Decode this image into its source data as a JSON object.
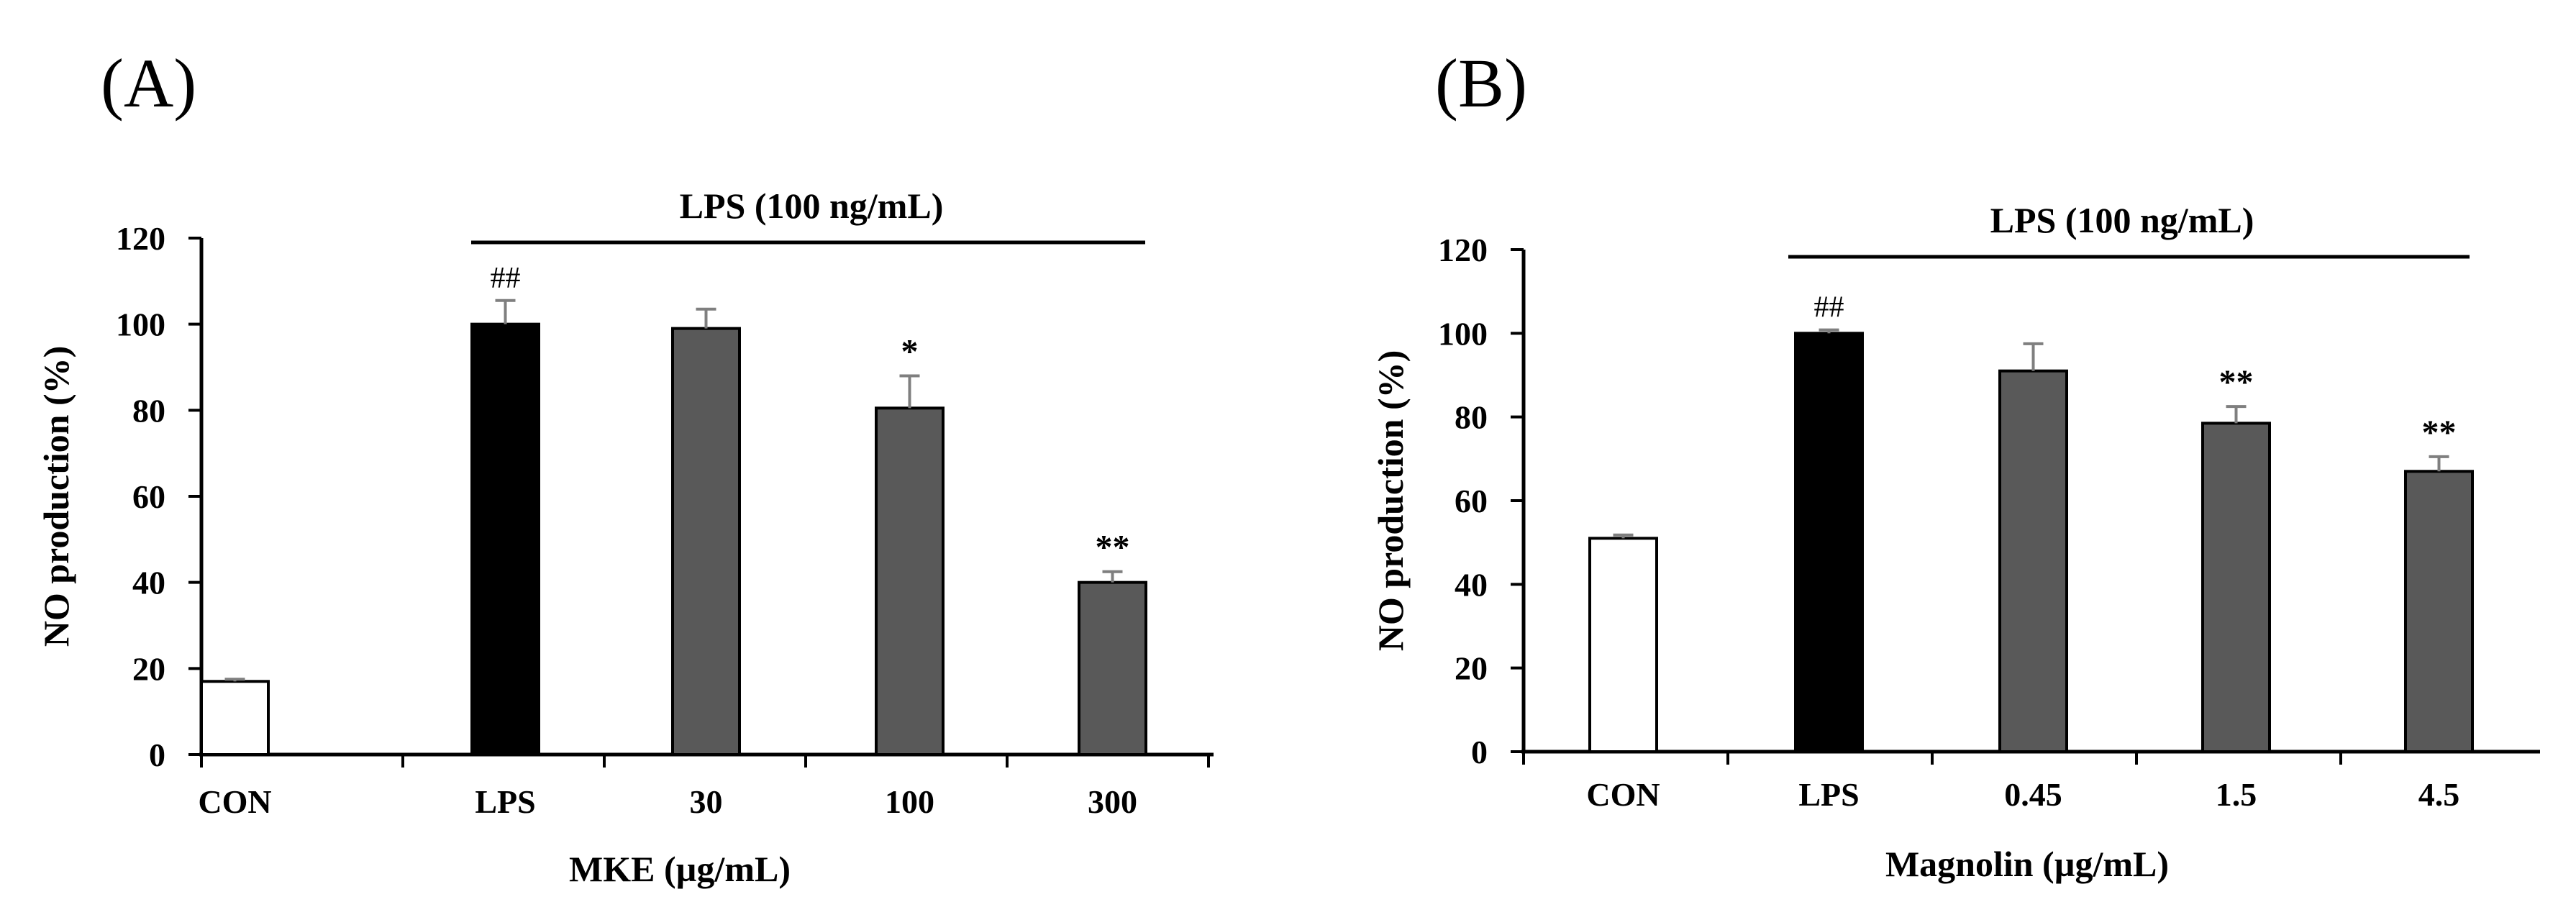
{
  "figure": {
    "colors": {
      "con": "#ffffff",
      "lps": "#000000",
      "treat": "#595959",
      "axis": "#000000",
      "error": "#7f7f7f"
    }
  },
  "chart_data": [
    {
      "panel": "(A)",
      "type": "bar",
      "title": "",
      "categories": [
        "CON",
        "LPS",
        "30",
        "100",
        "300"
      ],
      "values": [
        17,
        100,
        99,
        80.5,
        40
      ],
      "errors": [
        0.5,
        5.5,
        4.5,
        7.5,
        2.5
      ],
      "significance": [
        "",
        "##",
        "",
        "*",
        "**"
      ],
      "bar_roles": [
        "con",
        "lps",
        "treat",
        "treat",
        "treat"
      ],
      "xlabel": "MKE (µg/mL)",
      "ylabel": "NO production (%)",
      "ylim": [
        0,
        120
      ],
      "yticks": [
        "0",
        "20",
        "40",
        "60",
        "80",
        "100",
        "120"
      ],
      "treatment_label": "LPS (100 ng/mL)",
      "grid": false
    },
    {
      "panel": "(B)",
      "type": "bar",
      "title": "",
      "categories": [
        "CON",
        "LPS",
        "0.45",
        "1.5",
        "4.5"
      ],
      "values": [
        51,
        100,
        91,
        78.5,
        67
      ],
      "errors": [
        0.8,
        0.8,
        6.5,
        4,
        3.5
      ],
      "significance": [
        "",
        "##",
        "",
        "**",
        "**"
      ],
      "bar_roles": [
        "con",
        "lps",
        "treat",
        "treat",
        "treat"
      ],
      "xlabel": "Magnolin (µg/mL)",
      "ylabel": "NO production (%)",
      "ylim": [
        0,
        120
      ],
      "yticks": [
        "0",
        "20",
        "40",
        "60",
        "80",
        "100",
        "120"
      ],
      "treatment_label": "LPS (100 ng/mL)",
      "grid": false
    }
  ]
}
